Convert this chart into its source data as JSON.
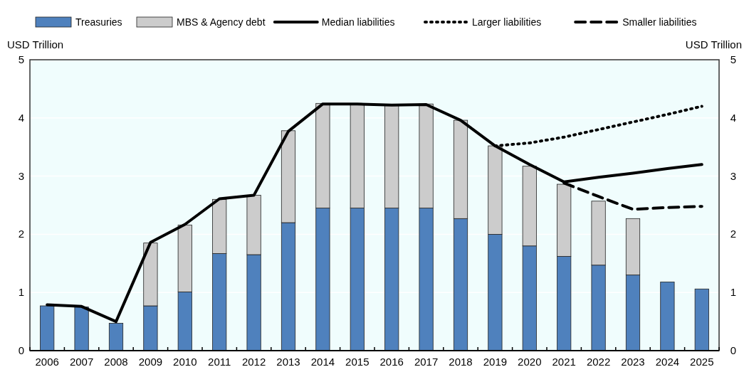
{
  "chart_data": {
    "type": "bar",
    "stacked": true,
    "ylabel": "USD Trillion",
    "y2label": "USD Trillion",
    "categories": [
      "2006",
      "2007",
      "2008",
      "2009",
      "2010",
      "2011",
      "2012",
      "2013",
      "2014",
      "2015",
      "2016",
      "2017",
      "2018",
      "2019",
      "2020",
      "2021",
      "2022",
      "2023",
      "2024",
      "2025"
    ],
    "series": [
      {
        "name": "Treasuries",
        "color": "#4f81bd",
        "values": [
          0.77,
          0.75,
          0.47,
          0.77,
          1.01,
          1.67,
          1.65,
          2.2,
          2.45,
          2.45,
          2.45,
          2.45,
          2.27,
          2.0,
          1.8,
          1.62,
          1.47,
          1.3,
          1.18,
          1.06
        ]
      },
      {
        "name": "MBS & Agency debt",
        "color": "#cccccc",
        "values": [
          null,
          null,
          null,
          1.08,
          1.15,
          0.93,
          1.02,
          1.58,
          1.8,
          1.79,
          1.77,
          1.79,
          1.69,
          1.52,
          1.37,
          1.24,
          1.1,
          0.97,
          null,
          null
        ]
      },
      {
        "name": "Median liabilities",
        "type": "line",
        "line_style": "solid",
        "color": "#000000",
        "values": [
          0.79,
          0.76,
          0.5,
          1.86,
          2.17,
          2.61,
          2.67,
          3.77,
          4.24,
          4.24,
          4.22,
          4.23,
          3.96,
          3.52,
          3.2,
          2.9,
          2.98,
          3.05,
          3.13,
          3.2
        ]
      },
      {
        "name": "Larger liabilities",
        "type": "line",
        "line_style": "dotted",
        "color": "#000000",
        "values": [
          null,
          null,
          null,
          null,
          null,
          null,
          null,
          null,
          null,
          null,
          null,
          null,
          null,
          3.52,
          3.57,
          3.67,
          3.8,
          3.93,
          4.06,
          4.2
        ]
      },
      {
        "name": "Smaller liabilities",
        "type": "line",
        "line_style": "dashed",
        "color": "#000000",
        "values": [
          null,
          null,
          null,
          null,
          null,
          null,
          null,
          null,
          null,
          null,
          null,
          null,
          null,
          null,
          null,
          2.88,
          2.65,
          2.43,
          2.46,
          2.48
        ]
      }
    ],
    "ylim": [
      0,
      5
    ],
    "yticks": [
      0,
      1,
      2,
      3,
      4,
      5
    ],
    "y2lim": [
      0,
      5
    ],
    "y2ticks": [
      0,
      1,
      2,
      3,
      4,
      5
    ],
    "grid": "y",
    "legend": "top"
  }
}
